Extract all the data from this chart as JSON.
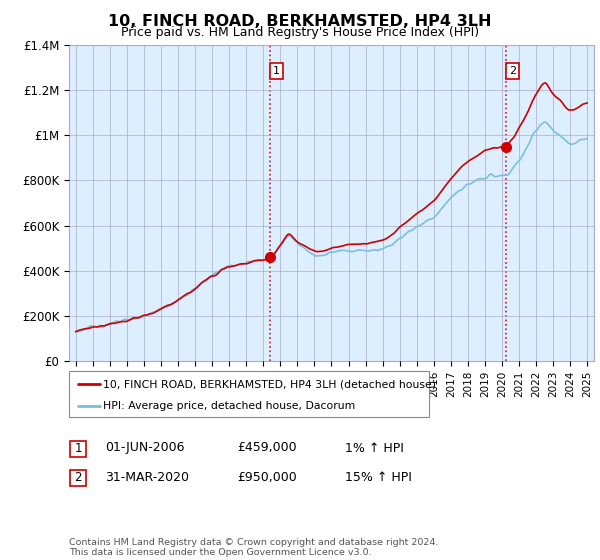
{
  "title": "10, FINCH ROAD, BERKHAMSTED, HP4 3LH",
  "subtitle": "Price paid vs. HM Land Registry's House Price Index (HPI)",
  "legend_line1": "10, FINCH ROAD, BERKHAMSTED, HP4 3LH (detached house)",
  "legend_line2": "HPI: Average price, detached house, Dacorum",
  "sale1_date": "01-JUN-2006",
  "sale1_price": "£459,000",
  "sale1_hpi": "1% ↑ HPI",
  "sale2_date": "31-MAR-2020",
  "sale2_price": "£950,000",
  "sale2_hpi": "15% ↑ HPI",
  "footer": "Contains HM Land Registry data © Crown copyright and database right 2024.\nThis data is licensed under the Open Government Licence v3.0.",
  "hpi_color": "#7bbfe0",
  "price_color": "#cc0000",
  "marker_color": "#cc0000",
  "vline_color": "#cc0000",
  "chart_bg_color": "#ddeeff",
  "grid_color": "#aaaacc",
  "ylim": [
    0,
    1400000
  ],
  "yticks": [
    0,
    200000,
    400000,
    600000,
    800000,
    1000000,
    1200000,
    1400000
  ],
  "ytick_labels": [
    "£0",
    "£200K",
    "£400K",
    "£600K",
    "£800K",
    "£1M",
    "£1.2M",
    "£1.4M"
  ],
  "sale1_x": 2006.42,
  "sale1_y": 459000,
  "sale2_x": 2020.25,
  "sale2_y": 950000,
  "xmin": 1994.6,
  "xmax": 2025.4
}
